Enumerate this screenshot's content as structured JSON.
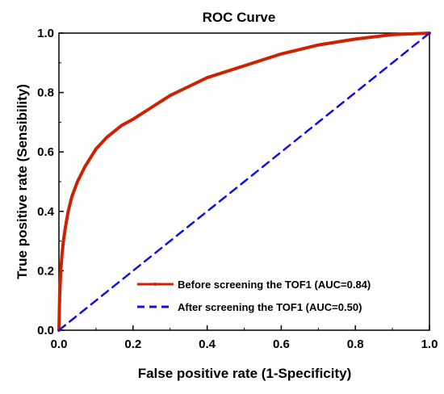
{
  "chart_data": {
    "type": "line",
    "title": "ROC Curve",
    "xlabel": "False positive rate (1-Specificity)",
    "ylabel": "True positive rate (Sensibility)",
    "xlim": [
      0.0,
      1.0
    ],
    "ylim": [
      0.0,
      1.0
    ],
    "x_ticks": [
      "0.0",
      "0.2",
      "0.4",
      "0.6",
      "0.8",
      "1.0"
    ],
    "y_ticks": [
      "0.0",
      "0.2",
      "0.4",
      "0.6",
      "0.8",
      "1.0"
    ],
    "grid": false,
    "legend_position": "bottom-right",
    "series": [
      {
        "name": "Before screening the TOF1 (AUC=0.84)",
        "color": "#cc2200",
        "style": "solid",
        "x": [
          0,
          0.002,
          0.005,
          0.008,
          0.012,
          0.018,
          0.025,
          0.035,
          0.05,
          0.07,
          0.1,
          0.13,
          0.17,
          0.2,
          0.25,
          0.3,
          0.35,
          0.4,
          0.5,
          0.6,
          0.7,
          0.8,
          0.9,
          1.0
        ],
        "y": [
          0,
          0.12,
          0.2,
          0.25,
          0.3,
          0.35,
          0.4,
          0.45,
          0.5,
          0.55,
          0.61,
          0.65,
          0.69,
          0.71,
          0.75,
          0.79,
          0.82,
          0.85,
          0.89,
          0.93,
          0.96,
          0.98,
          0.995,
          1.0
        ]
      },
      {
        "name": "After screening the TOF1 (AUC=0.50)",
        "color": "#1111dd",
        "style": "dashed",
        "x": [
          0,
          1.0
        ],
        "y": [
          0,
          1.0
        ]
      }
    ]
  }
}
